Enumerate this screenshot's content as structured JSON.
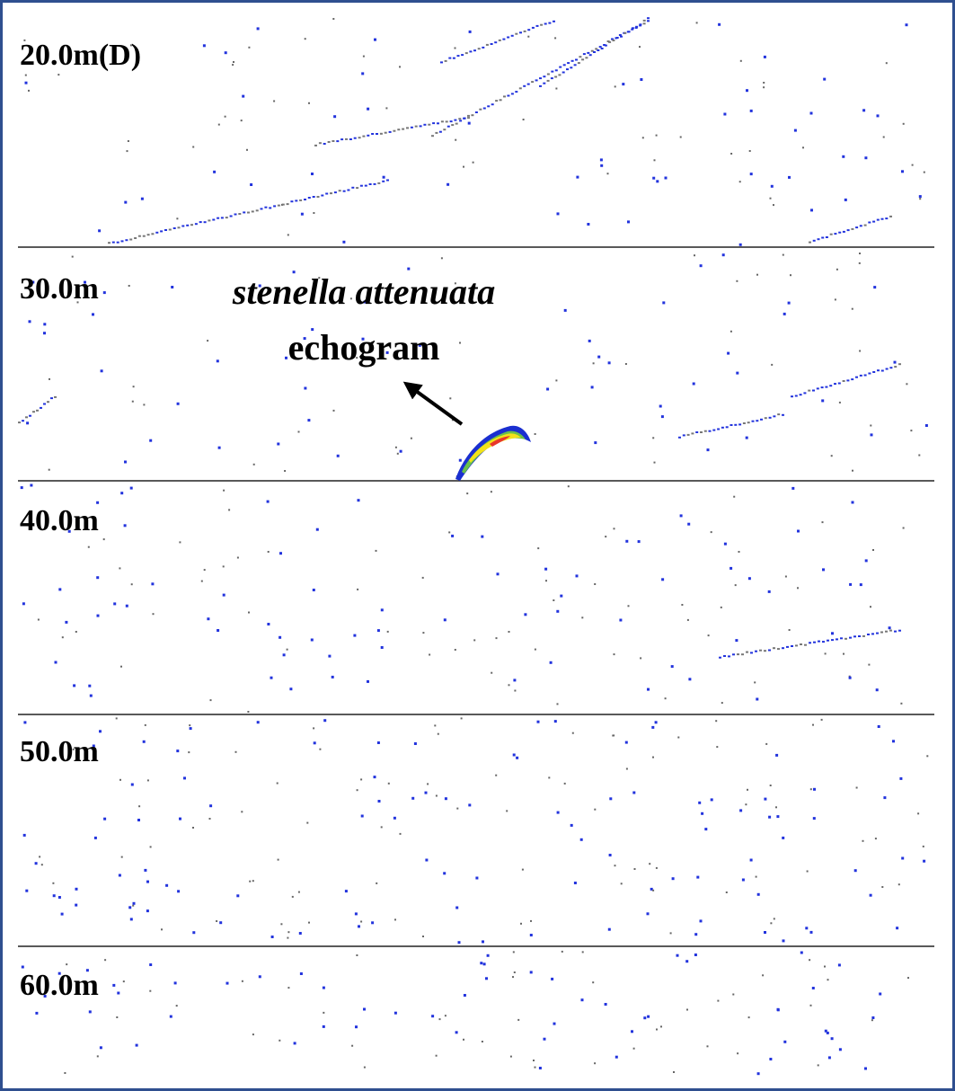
{
  "depth_labels": [
    "20.0m(D)",
    "30.0m",
    "40.0m",
    "50.0m",
    "60.0m"
  ],
  "annotation": {
    "species": "stenella attenuata",
    "label": "echogram"
  }
}
